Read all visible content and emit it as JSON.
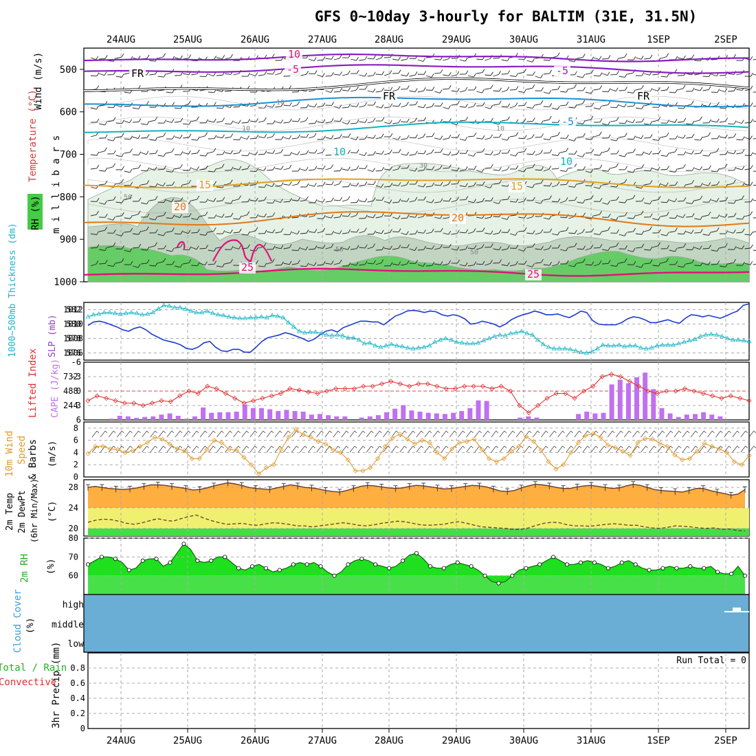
{
  "title": "GFS 0~10day 3-hourly for BALTIM (31E, 31.5N)",
  "dates": [
    "24AUG",
    "25AUG",
    "26AUG",
    "27AUG",
    "28AUG",
    "29AUG",
    "30AUG",
    "31AUG",
    "1SEP",
    "2SEP"
  ],
  "colors": {
    "purple": "#8a1fc0",
    "black": "#000000",
    "blue_dark": "#1f8fd0",
    "cyan": "#14b0c0",
    "orange_light": "#e0a020",
    "orange": "#e07818",
    "magenta": "#e0107a",
    "rh_light": "#e6f2e6",
    "rh_mid": "#c2d4c2",
    "rh_green": "#66cc66",
    "slp": "#1a3ad0",
    "thickness": "#20b8c8",
    "li": "#e03030",
    "cape": "#c070f0",
    "wind": "#e09a30",
    "temp_fill": "#ffae40",
    "temp_hot": "#e05020",
    "dew_band": "#f0f070",
    "green_band": "#44dd44",
    "rh2": "#1ee01e",
    "rh2_dark": "#22bb22",
    "cloud": "#6aaed6"
  },
  "panels": {
    "upper": {
      "y_title": [
        "Wind (m/s)",
        "Temperature (°C)",
        "RH (%)"
      ],
      "y_unit": "m i l l i b a r s",
      "y_ticks": [
        500,
        600,
        700,
        800,
        900,
        1000
      ],
      "contour_labels": [
        {
          "text": "10",
          "color": "magenta"
        },
        {
          "text": "-5",
          "color": "magenta"
        },
        {
          "text": "-5",
          "color": "purple"
        },
        {
          "text": "FR",
          "color": "black"
        },
        {
          "text": "FR",
          "color": "black"
        },
        {
          "text": "FR",
          "color": "black"
        },
        {
          "text": "-5",
          "color": "blue_dark"
        },
        {
          "text": "10",
          "color": "cyan"
        },
        {
          "text": "10",
          "color": "cyan"
        },
        {
          "text": "15",
          "color": "orange_light"
        },
        {
          "text": "15",
          "color": "orange_light"
        },
        {
          "text": "20",
          "color": "orange"
        },
        {
          "text": "20",
          "color": "orange"
        },
        {
          "text": "25",
          "color": "magenta"
        },
        {
          "text": "25",
          "color": "magenta"
        }
      ],
      "rh_labels": [
        "10",
        "10",
        "10",
        "50",
        "30",
        "50",
        "50"
      ]
    },
    "slp": {
      "left_title": "1000~500mb Thickness (dm)",
      "right_title": "SLP (mb)",
      "thickness_ticks": [
        576,
        578,
        580,
        582
      ],
      "slp_ticks": [
        1006,
        1008,
        1010,
        1012
      ]
    },
    "cape": {
      "left_title": "Lifted Index",
      "right_title": "CAPE (J/kg)",
      "li_ticks": [
        "-6",
        "-3",
        "0",
        "3",
        "6"
      ],
      "cape_ticks": [
        732,
        488,
        244
      ]
    },
    "wind": {
      "title_a": "10m Wind",
      "title_b": "Speed",
      "title_c": "& Barbs",
      "unit": "(m/s)",
      "ticks": [
        0,
        2,
        4,
        6,
        8
      ]
    },
    "temp": {
      "title_a": "2m Temp",
      "title_b": "2m DewPt",
      "title_c": "(6hr Min/Max)",
      "unit": "(°C)",
      "ticks": [
        20,
        24,
        28
      ]
    },
    "rh2": {
      "title": "2m RH",
      "unit": "(%)",
      "ticks": [
        60,
        70,
        80
      ]
    },
    "cloud": {
      "title": "Cloud Cover",
      "unit": "(%)",
      "levels": [
        "high",
        "middle",
        "low"
      ]
    },
    "precip": {
      "title_a": "Total / Rain",
      "title_b": "Convective",
      "y_title": "3hr Precip (mm)",
      "ticks": [
        "0",
        "0.2",
        "0.4",
        "0.6",
        "0.8"
      ],
      "run_total": "Run Total = 0"
    }
  },
  "chart_data": [
    {
      "type": "line",
      "name": "SLP and thickness",
      "x_unit": "3-hourly steps from 23AUG 12Z",
      "series": [
        {
          "name": "SLP (mb)",
          "values": [
            1009.8,
            1010.3,
            1010.4,
            1010.2,
            1009.9,
            1009.6,
            1009.2,
            1009.0,
            1009.4,
            1009.6,
            1009.2,
            1008.6,
            1008.2,
            1007.8,
            1007.6,
            1007.4,
            1007.1,
            1006.6,
            1006.5,
            1006.8,
            1007.4,
            1007.6,
            1006.8,
            1006.3,
            1006.2,
            1006.5,
            1006.5,
            1006.1,
            1006.1,
            1006.8,
            1007.6,
            1008.1,
            1008.3,
            1008.5,
            1008.8,
            1008.6,
            1008.3,
            1008.0,
            1007.6,
            1007.9,
            1008.5,
            1009.0,
            1009.2,
            1008.9,
            1009.5,
            1009.8,
            1010.1,
            1010.4,
            1010.4,
            1010.3,
            1010.3,
            1009.9,
            1010.5,
            1011.1,
            1011.4,
            1011.8,
            1011.9,
            1011.8,
            1011.6,
            1011.8,
            1011.7,
            1011.3,
            1011.1,
            1011.3,
            1011.1,
            1010.7,
            1010.0,
            1010.1,
            1010.4,
            1010.2,
            1010.0,
            1009.6,
            1010.0,
            1010.6,
            1011.0,
            1011.3,
            1011.5,
            1011.8,
            1011.6,
            1011.3,
            1011.3,
            1011.4,
            1011.1,
            1010.9,
            1011.3,
            1011.8,
            1011.6,
            1010.5,
            1010.0,
            1009.9,
            1009.9,
            1009.9,
            1010.2,
            1010.7,
            1011.0,
            1010.9,
            1010.6,
            1010.2,
            1010.2,
            1010.4,
            1010.6,
            1010.3,
            1010.1,
            1010.8,
            1011.3,
            1011.2,
            1011.0,
            1011.2,
            1011.0,
            1010.8,
            1011.1,
            1011.5,
            1011.8,
            1012.6,
            1012.8
          ]
        },
        {
          "name": "1000~500mb Thickness (dm)",
          "values": [
            581.0,
            581.3,
            581.4,
            581.6,
            581.6,
            581.5,
            581.4,
            581.5,
            581.6,
            581.5,
            581.3,
            581.4,
            581.6,
            582.1,
            582.6,
            582.5,
            582.3,
            582.3,
            582.1,
            581.8,
            581.6,
            581.6,
            581.8,
            581.5,
            581.3,
            581.2,
            581.0,
            580.9,
            580.8,
            580.8,
            580.9,
            580.9,
            581.0,
            580.9,
            581.2,
            581.1,
            580.9,
            580.2,
            579.6,
            579.0,
            578.8,
            578.9,
            578.9,
            578.7,
            578.5,
            578.4,
            578.5,
            578.4,
            578.1,
            578.1,
            577.8,
            577.3,
            577.4,
            577.0,
            576.8,
            577.0,
            577.2,
            577.0,
            576.9,
            576.7,
            576.6,
            576.7,
            576.8,
            577.0,
            577.5,
            577.8,
            578.0,
            577.8,
            577.5,
            577.4,
            577.3,
            577.3,
            577.4,
            577.7,
            578.0,
            578.3,
            578.5,
            578.4,
            578.7,
            578.8,
            579.0,
            578.7,
            578.5,
            577.8,
            577.2,
            576.8,
            576.6,
            576.6,
            576.6,
            576.5,
            576.3,
            576.1,
            576.0,
            576.2,
            576.6,
            577.1,
            577.0,
            577.0,
            577.1,
            576.9,
            577.0,
            577.0,
            576.7,
            576.6,
            576.7,
            577.0,
            577.1,
            577.1,
            577.1,
            577.3,
            577.5,
            577.7,
            577.9,
            578.3,
            578.5,
            578.6,
            578.5,
            578.3,
            578.0,
            577.8,
            577.8,
            577.7,
            577.6
          ]
        }
      ],
      "ylim_slp": [
        1005,
        1013
      ],
      "ylim_thickness": [
        575,
        583
      ]
    },
    {
      "type": "bar",
      "name": "CAPE and Lifted Index",
      "series": [
        {
          "name": "CAPE (J/kg)",
          "values": [
            0,
            20,
            70,
            60,
            35,
            50,
            60,
            90,
            110,
            70,
            20,
            60,
            210,
            120,
            130,
            130,
            140,
            260,
            200,
            200,
            180,
            150,
            170,
            150,
            140,
            90,
            100,
            80,
            60,
            60,
            0,
            40,
            60,
            80,
            130,
            190,
            250,
            160,
            140,
            120,
            110,
            100,
            120,
            150,
            200,
            330,
            320,
            0,
            0,
            0,
            40,
            60,
            40,
            0,
            0,
            0,
            0,
            100,
            140,
            110,
            120,
            600,
            680,
            620,
            720,
            800,
            520,
            200,
            110,
            50,
            90,
            100,
            130,
            90,
            60,
            0
          ]
        },
        {
          "name": "Lifted Index",
          "values": [
            2.0,
            1.0,
            1.5,
            2.0,
            2.5,
            2.5,
            3.0,
            2.5,
            2.0,
            2.2,
            1.0,
            0.0,
            0.5,
            -1.0,
            -0.5,
            0.5,
            1.5,
            2.5,
            2.0,
            1.5,
            1.0,
            0.5,
            -0.5,
            -0.2,
            0.2,
            0.5,
            0.0,
            -0.5,
            -0.5,
            -0.5,
            -1.0,
            -1.0,
            -1.5,
            -2.0,
            -1.5,
            -1.0,
            -1.5,
            -1.5,
            -1.0,
            -0.5,
            -0.5,
            -1.0,
            -1.0,
            -1.0,
            -0.5,
            -1.0,
            0.0,
            3.0,
            4.5,
            3.0,
            1.5,
            0.5,
            0.5,
            1.5,
            0.0,
            -1.0,
            -3.0,
            -3.5,
            -3.0,
            -2.0,
            -1.0,
            0.0,
            0.5,
            0.0,
            0.0,
            -0.5,
            0.0,
            0.5,
            1.0,
            1.5,
            1.0,
            1.5,
            2.0
          ]
        }
      ],
      "ylim_cape": [
        0,
        976
      ],
      "ylim_li": [
        6,
        -6
      ]
    },
    {
      "type": "line",
      "name": "10m Wind Speed",
      "series": [
        {
          "name": "10m Wind Speed (m/s)",
          "values": [
            3.8,
            5.0,
            5.0,
            4.6,
            4.5,
            4.0,
            4.3,
            5.0,
            5.6,
            6.5,
            6.2,
            5.4,
            4.6,
            4.3,
            3.0,
            3.0,
            4.5,
            6.0,
            5.6,
            4.5,
            4.4,
            3.2,
            2.0,
            0.5,
            1.5,
            2.0,
            4.5,
            6.5,
            7.8,
            6.9,
            6.5,
            5.8,
            5.4,
            4.4,
            4.0,
            2.8,
            1.0,
            1.0,
            1.5,
            3.0,
            5.0,
            6.4,
            7.0,
            6.2,
            5.4,
            6.0,
            5.6,
            4.0,
            3.0,
            4.6,
            5.6,
            5.8,
            6.2,
            4.5,
            3.0,
            2.5,
            3.0,
            4.2,
            5.0,
            6.6,
            5.8,
            4.4,
            2.5,
            1.3,
            2.0,
            4.0,
            5.6,
            6.8,
            7.1,
            6.5,
            5.2,
            4.8,
            4.2,
            3.5,
            5.6,
            6.3,
            6.2,
            5.5,
            5.0,
            3.6,
            2.8,
            3.0,
            4.2,
            5.5,
            5.0,
            4.6,
            4.0,
            2.5,
            2.0,
            3.5
          ]
        }
      ],
      "ylim": [
        0,
        9
      ]
    },
    {
      "type": "area",
      "name": "2m Temp and DewPt",
      "series": [
        {
          "name": "2m Temp (°C)",
          "values": [
            28.0,
            28.2,
            28.0,
            27.8,
            27.7,
            27.6,
            27.7,
            27.9,
            28.2,
            28.5,
            28.5,
            28.4,
            28.2,
            28.0,
            27.8,
            27.5,
            27.6,
            27.9,
            28.3,
            28.6,
            28.9,
            28.7,
            28.4,
            28.0,
            27.8,
            27.7,
            27.6,
            27.9,
            28.2,
            28.5,
            28.3,
            28.0,
            27.9,
            27.7,
            27.4,
            27.2,
            27.1,
            27.4,
            27.8,
            28.2,
            28.4,
            28.3,
            28.1,
            27.9,
            27.8,
            27.9,
            28.2,
            28.4,
            28.3,
            28.1,
            27.9,
            27.7,
            27.8,
            28.0,
            28.2,
            28.4,
            28.3,
            28.1,
            27.7,
            27.3,
            27.2,
            27.4,
            27.9,
            28.3,
            28.6,
            28.5,
            28.3,
            28.0,
            27.8,
            27.8,
            28.1,
            28.3,
            28.4,
            28.2,
            28.0,
            27.8,
            27.9,
            28.3,
            28.6,
            28.4,
            28.0,
            27.6,
            27.4,
            27.3,
            27.2,
            27.1,
            27.4,
            27.8,
            27.8,
            27.4,
            27.1,
            26.8,
            26.5,
            26.7,
            27.6
          ]
        },
        {
          "name": "2m DewPt (°C)",
          "values": [
            21.2,
            21.6,
            21.8,
            21.7,
            21.4,
            21.0,
            20.8,
            21.1,
            21.5,
            21.9,
            21.6,
            21.4,
            21.9,
            22.3,
            22.6,
            22.0,
            21.5,
            21.1,
            20.8,
            20.9,
            21.0,
            20.7,
            20.6,
            20.9,
            21.1,
            21.0,
            20.8,
            20.5,
            20.5,
            20.3,
            20.5,
            20.7,
            20.9,
            21.1,
            20.9,
            20.6,
            20.5,
            20.7,
            21.0,
            21.2,
            21.4,
            21.3,
            21.0,
            20.7,
            20.6,
            20.7,
            20.8,
            21.1,
            21.3,
            21.0,
            20.6,
            20.3,
            20.2,
            20.1,
            20.0,
            19.8,
            19.8,
            20.1,
            20.6,
            21.0,
            21.2,
            21.1,
            20.7,
            20.5,
            20.5,
            20.4,
            20.6,
            20.8,
            20.9,
            20.8,
            20.6,
            20.6,
            20.3,
            20.1,
            20.0,
            20.2,
            20.5,
            20.4,
            20.3,
            20.1,
            20.0,
            20.1,
            19.8,
            19.9,
            19.6,
            19.5
          ]
        }
      ],
      "ylim": [
        18.5,
        29.5
      ]
    },
    {
      "type": "area",
      "name": "2m RH",
      "series": [
        {
          "name": "2m RH (%)",
          "values": [
            66,
            68,
            70,
            70,
            69,
            67,
            63,
            64,
            68,
            69,
            69,
            65,
            67,
            72,
            77,
            74,
            68,
            67,
            68,
            70,
            70,
            67,
            64,
            63,
            65,
            66,
            64,
            62,
            63,
            64,
            66,
            67,
            66,
            67,
            65,
            62,
            60,
            62,
            66,
            68,
            69,
            68,
            66,
            65,
            64,
            65,
            68,
            71,
            72,
            69,
            65,
            64,
            64,
            66,
            67,
            66,
            65,
            63,
            60,
            57,
            56,
            57,
            60,
            63,
            64,
            65,
            66,
            68,
            70,
            68,
            66,
            66,
            67,
            68,
            67,
            66,
            64,
            65,
            67,
            68,
            66,
            64,
            63,
            63,
            64,
            65,
            64,
            64,
            65,
            64,
            64,
            65,
            62,
            61,
            61,
            65,
            60
          ]
        }
      ],
      "ylim": [
        50,
        80
      ]
    },
    {
      "type": "bar",
      "name": "3hr Precip",
      "series": [
        {
          "name": "3hr Precip (mm)",
          "values": [
            0,
            0,
            0,
            0,
            0,
            0,
            0,
            0,
            0,
            0
          ]
        }
      ],
      "ylim": [
        0,
        1
      ]
    }
  ]
}
